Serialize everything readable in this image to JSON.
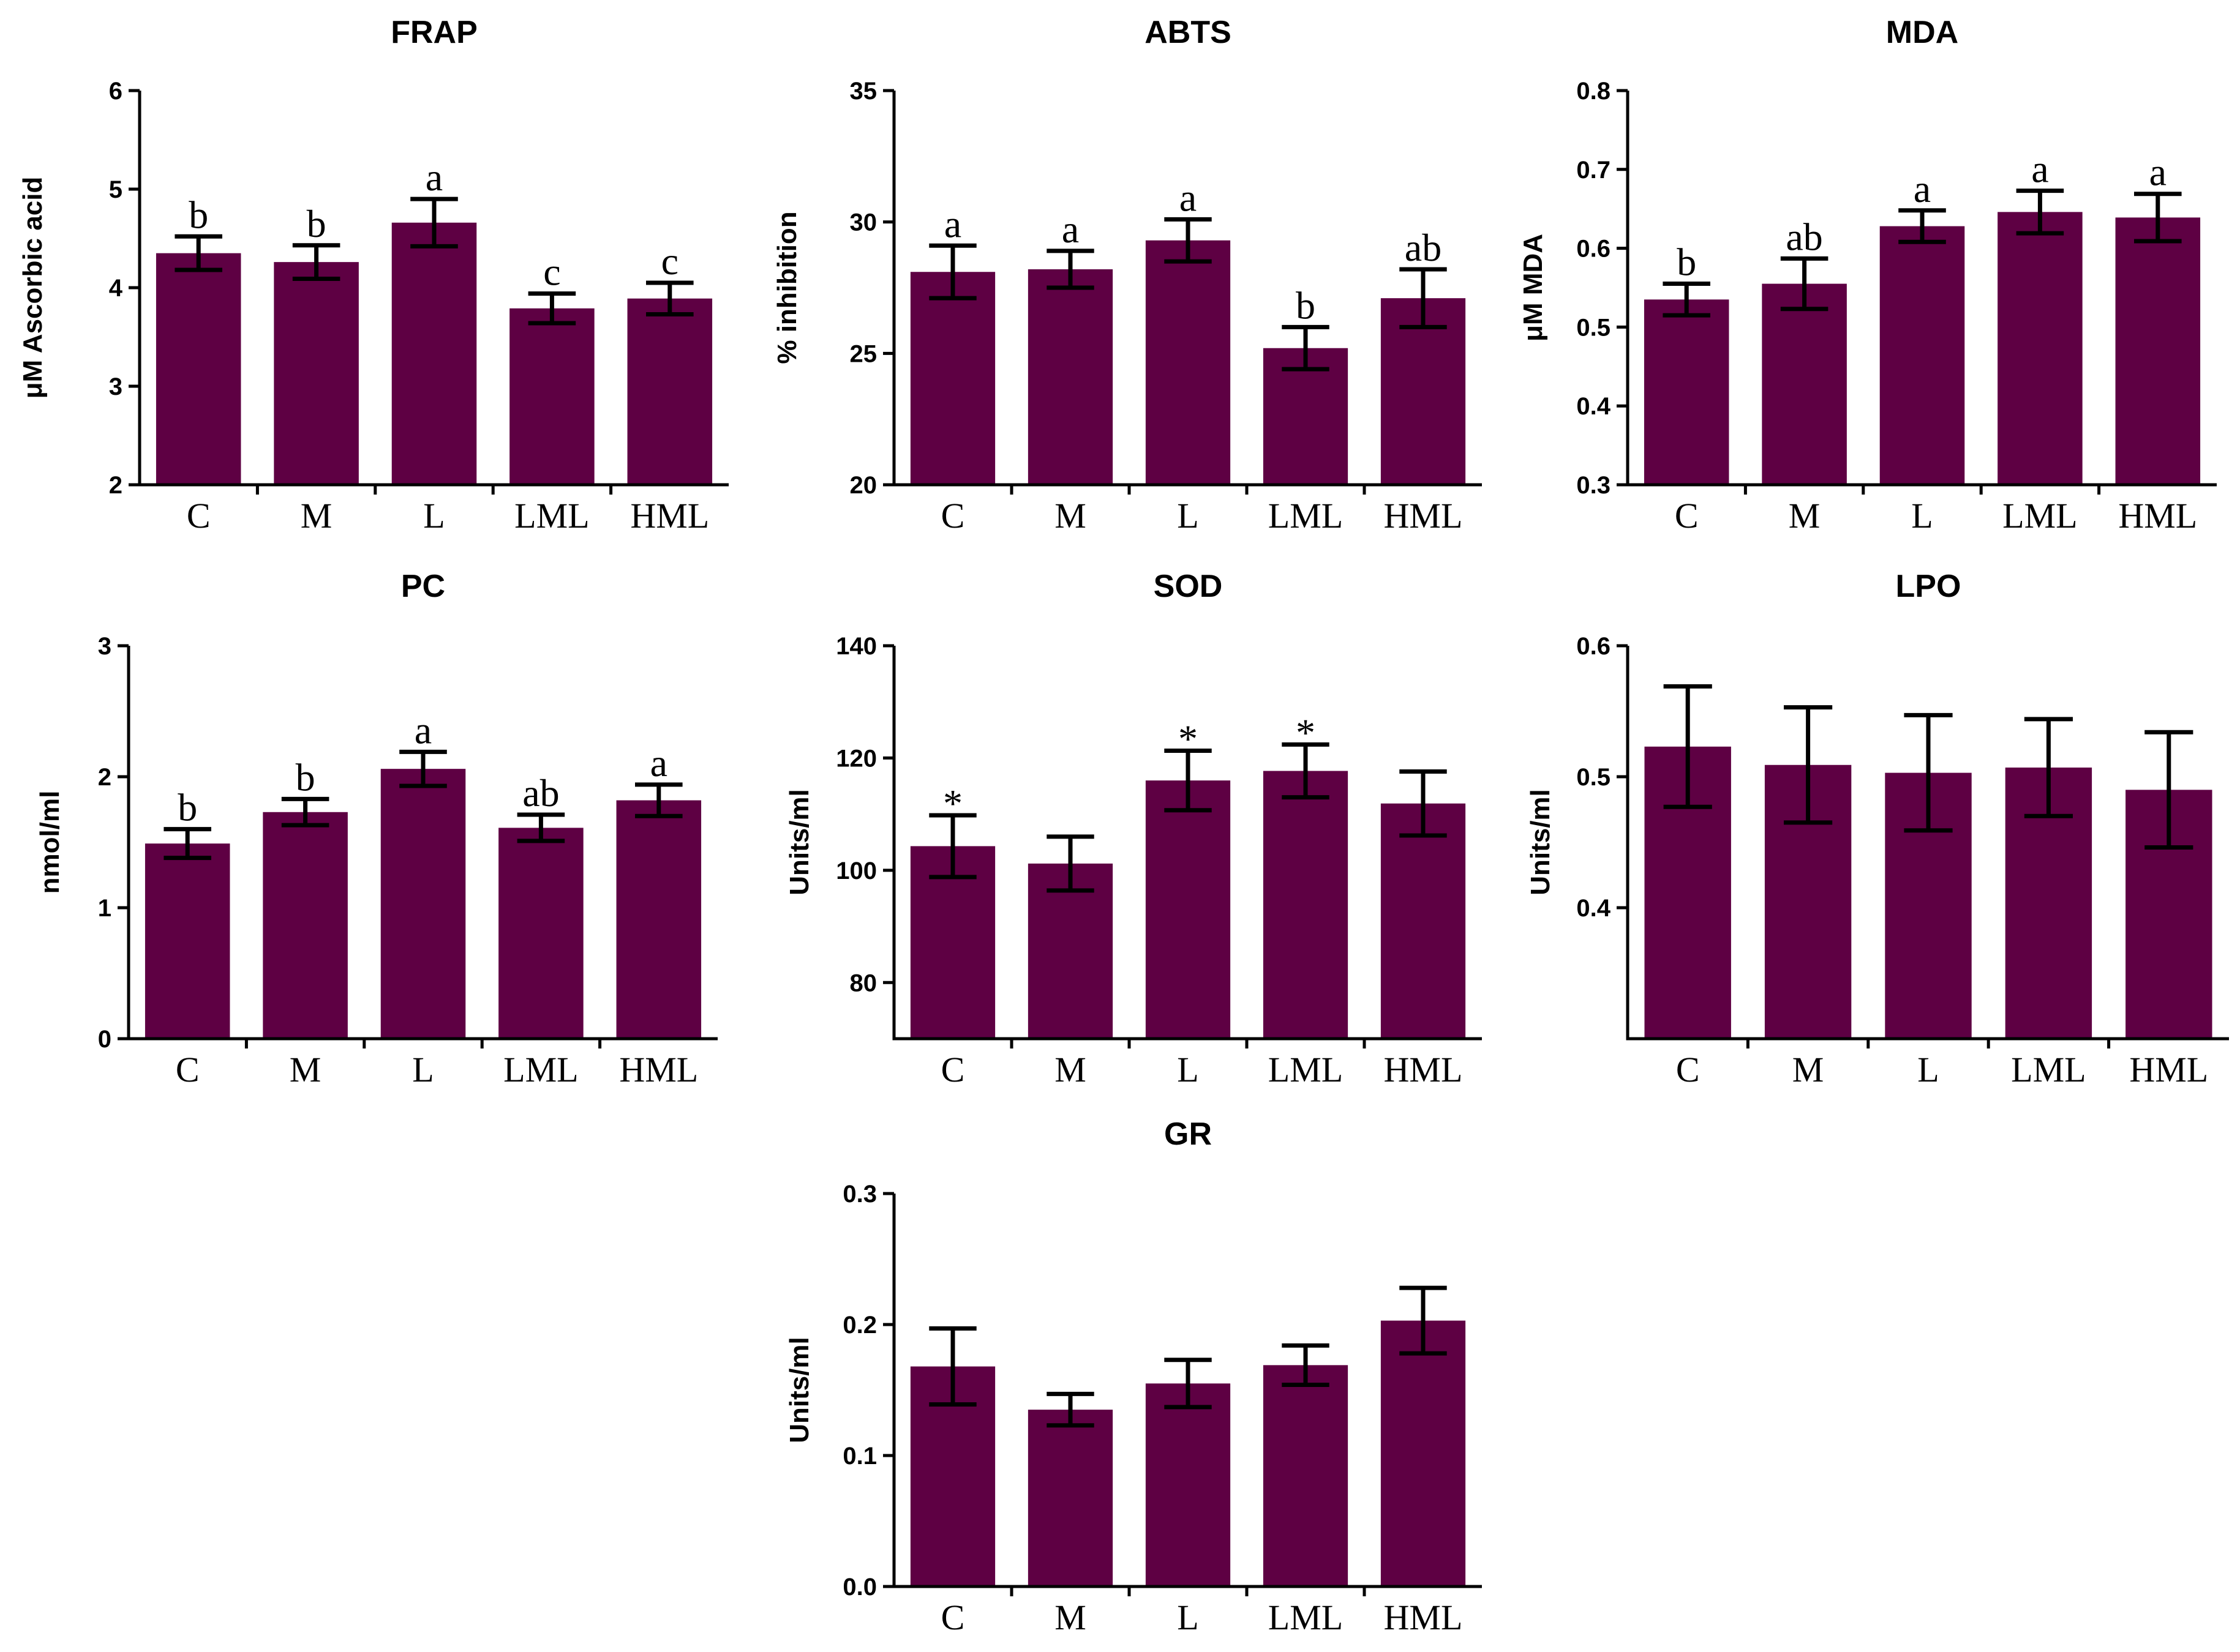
{
  "colors": {
    "bar": "#5e0043",
    "axis": "#000000"
  },
  "chart_data": [
    {
      "type": "bar",
      "title": "FRAP",
      "ylabel": "μM Ascorbic acid",
      "ylim": [
        2,
        6
      ],
      "yticks": [
        2,
        3,
        4,
        5,
        6
      ],
      "categories": [
        "C",
        "M",
        "L",
        "LML",
        "HML"
      ],
      "values": [
        4.35,
        4.26,
        4.66,
        3.79,
        3.89
      ],
      "errors": [
        0.17,
        0.17,
        0.24,
        0.15,
        0.16
      ],
      "labels": [
        "b",
        "b",
        "a",
        "c",
        "c"
      ]
    },
    {
      "type": "bar",
      "title": "ABTS",
      "ylabel": "% inhibition",
      "ylim": [
        20,
        35
      ],
      "yticks": [
        20,
        25,
        30,
        35
      ],
      "categories": [
        "C",
        "M",
        "L",
        "LML",
        "HML"
      ],
      "values": [
        28.1,
        28.2,
        29.3,
        25.2,
        27.1
      ],
      "errors": [
        1.0,
        0.7,
        0.8,
        0.8,
        1.1
      ],
      "labels": [
        "a",
        "a",
        "a",
        "b",
        "ab"
      ]
    },
    {
      "type": "bar",
      "title": "MDA",
      "ylabel": "μM MDA",
      "ylim": [
        0.3,
        0.8
      ],
      "yticks": [
        0.3,
        0.4,
        0.5,
        0.6,
        0.7,
        0.8
      ],
      "categories": [
        "C",
        "M",
        "L",
        "LML",
        "HML"
      ],
      "values": [
        0.535,
        0.555,
        0.628,
        0.646,
        0.639
      ],
      "errors": [
        0.02,
        0.032,
        0.02,
        0.027,
        0.03
      ],
      "labels": [
        "b",
        "ab",
        "a",
        "a",
        "a"
      ]
    },
    {
      "type": "bar",
      "title": "PC",
      "ylabel": "nmol/ml",
      "ylim": [
        0,
        3
      ],
      "yticks": [
        0,
        1,
        2,
        3
      ],
      "categories": [
        "C",
        "M",
        "L",
        "LML",
        "HML"
      ],
      "values": [
        1.49,
        1.73,
        2.06,
        1.61,
        1.82
      ],
      "errors": [
        0.11,
        0.1,
        0.13,
        0.1,
        0.12
      ],
      "labels": [
        "b",
        "b",
        "a",
        "ab",
        "a"
      ]
    },
    {
      "type": "bar",
      "title": "SOD",
      "ylabel": "Units/ml",
      "ylim": [
        70,
        140
      ],
      "yticks": [
        80,
        100,
        120,
        140
      ],
      "categories": [
        "C",
        "M",
        "L",
        "LML",
        "HML"
      ],
      "values": [
        104.3,
        101.2,
        116.0,
        117.7,
        111.9
      ],
      "errors": [
        5.5,
        4.8,
        5.3,
        4.7,
        5.7
      ],
      "labels": [
        "*",
        "",
        "*",
        "*",
        ""
      ]
    },
    {
      "type": "bar",
      "title": "LPO",
      "ylabel": "Units/ml",
      "ylim": [
        0.3,
        0.6
      ],
      "yticks": [
        0.4,
        0.5,
        0.6
      ],
      "categories": [
        "C",
        "M",
        "L",
        "LML",
        "HML"
      ],
      "values": [
        0.523,
        0.509,
        0.503,
        0.507,
        0.49
      ],
      "errors": [
        0.046,
        0.044,
        0.044,
        0.037,
        0.044
      ],
      "labels": [
        "",
        "",
        "",
        "",
        ""
      ]
    },
    {
      "type": "bar",
      "title": "GR",
      "ylabel": "Units/ml",
      "ylim": [
        0,
        0.3
      ],
      "yticks": [
        0.0,
        0.1,
        0.2,
        0.3
      ],
      "ytick_decimals": 1,
      "categories": [
        "C",
        "M",
        "L",
        "LML",
        "HML"
      ],
      "values": [
        0.168,
        0.135,
        0.155,
        0.169,
        0.203
      ],
      "errors": [
        0.029,
        0.012,
        0.018,
        0.015,
        0.025
      ],
      "labels": [
        "",
        "",
        "",
        "",
        ""
      ]
    }
  ]
}
